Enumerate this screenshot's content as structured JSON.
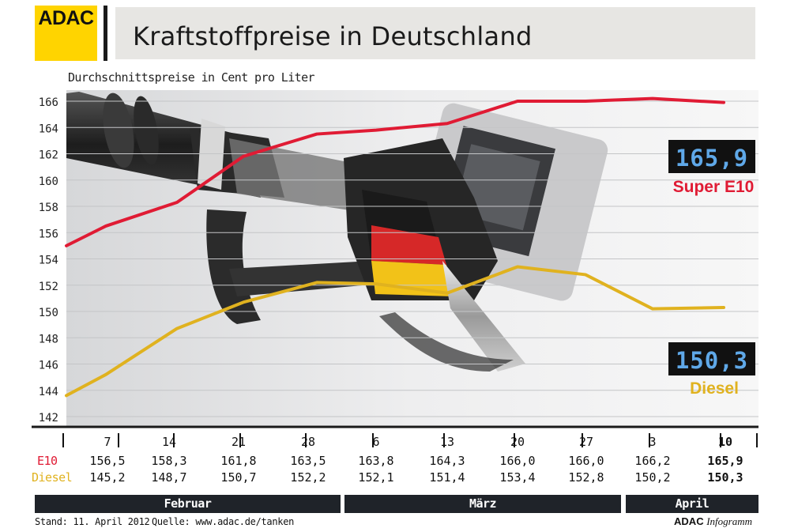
{
  "header": {
    "logo_text": "ADAC",
    "title": "Kraftstoffpreise in Deutschland"
  },
  "colors": {
    "e10": "#e01b34",
    "diesel": "#e0b21f",
    "logo": "#ffd400",
    "dark": "#1f2329"
  },
  "chart_data": {
    "type": "line",
    "title": "Kraftstoffpreise in Deutschland",
    "subtitle": "Durchschnittspreise in Cent pro Liter",
    "ylabel": "",
    "xlabel": "",
    "ylim": [
      142,
      166
    ],
    "yticks": [
      "166",
      "164",
      "162",
      "160",
      "158",
      "156",
      "154",
      "152",
      "150",
      "148",
      "146",
      "144",
      "142"
    ],
    "grid": true,
    "categories": [
      "7",
      "14",
      "21",
      "28",
      "6",
      "13",
      "20",
      "27",
      "3",
      "10"
    ],
    "series": [
      {
        "name": "Super E10",
        "color": "#e01b34",
        "display": "165,9",
        "row_label": "E10",
        "values": [
          156.5,
          158.3,
          161.8,
          163.5,
          163.8,
          164.3,
          166.0,
          166.0,
          166.2,
          165.9
        ],
        "labels": [
          "156,5",
          "158,3",
          "161,8",
          "163,5",
          "163,8",
          "164,3",
          "166,0",
          "166,0",
          "166,2",
          "165,9"
        ]
      },
      {
        "name": "Diesel",
        "color": "#e0b21f",
        "display": "150,3",
        "row_label": "Diesel",
        "values": [
          145.2,
          148.7,
          150.7,
          152.2,
          152.1,
          151.4,
          153.4,
          152.8,
          150.2,
          150.3
        ],
        "labels": [
          "145,2",
          "148,7",
          "150,7",
          "152,2",
          "152,1",
          "151,4",
          "153,4",
          "152,8",
          "150,2",
          "150,3"
        ]
      }
    ],
    "months": [
      "Februar",
      "März",
      "April"
    ]
  },
  "footer": {
    "stand": "Stand: 11. April 2012",
    "quelle": "Quelle: www.adac.de/tanken",
    "brand": "ADAC",
    "brand_suffix": "Infogramm"
  }
}
